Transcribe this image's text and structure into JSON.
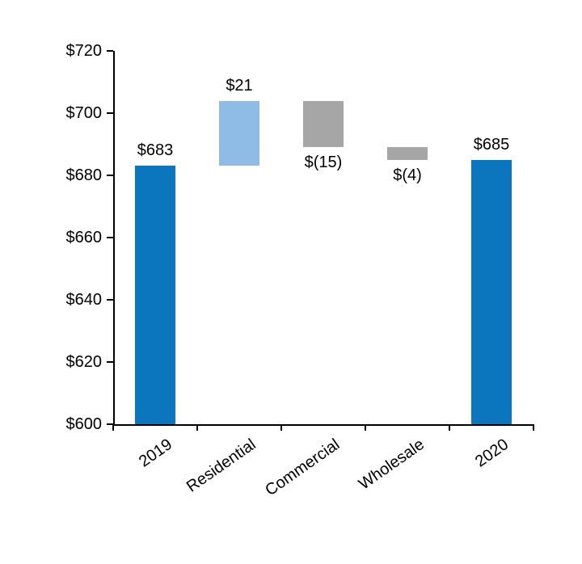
{
  "chart_data": {
    "type": "bar",
    "subtype": "waterfall",
    "title": "",
    "categories": [
      "2019",
      "Residential",
      "Commercial",
      "Wholesale",
      "2020"
    ],
    "bars": [
      {
        "category": "2019",
        "start": 600,
        "end": 683,
        "label": "$683",
        "label_position": "above",
        "color_key": "blue"
      },
      {
        "category": "Residential",
        "start": 683,
        "end": 704,
        "label": "$21",
        "label_position": "above",
        "color_key": "light_blue"
      },
      {
        "category": "Commercial",
        "start": 704,
        "end": 689,
        "label": "$(15)",
        "label_position": "below",
        "color_key": "gray"
      },
      {
        "category": "Wholesale",
        "start": 689,
        "end": 685,
        "label": "$(4)",
        "label_position": "below",
        "color_key": "gray"
      },
      {
        "category": "2020",
        "start": 600,
        "end": 685,
        "label": "$685",
        "label_position": "above",
        "color_key": "blue"
      }
    ],
    "y_axis": {
      "min": 600,
      "max": 720,
      "tick_step": 20,
      "tick_labels": [
        "$600",
        "$620",
        "$640",
        "$660",
        "$680",
        "$700",
        "$720"
      ]
    },
    "colors": {
      "blue": "#0B76BE",
      "light_blue": "#8FBCE6",
      "gray": "#A6A6A6",
      "axis": "#000000",
      "text": "#000000"
    },
    "grid": false,
    "legend": false,
    "xlabel": "",
    "ylabel": ""
  }
}
